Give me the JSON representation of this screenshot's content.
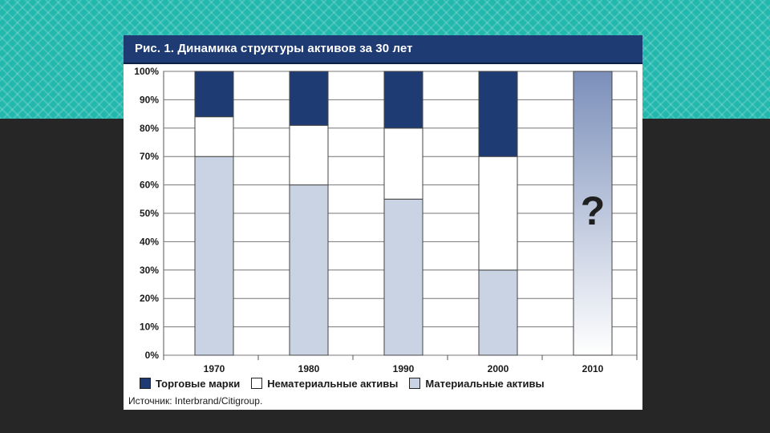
{
  "colors": {
    "brand": "#1f3b73",
    "intangible": "#ffffff",
    "tangible": "#c9d3e4",
    "background_band": "#22b8ad",
    "slide_background": "#262626"
  },
  "chart_data": {
    "type": "bar",
    "stacked": true,
    "title": "Рис. 1. Динамика структуры активов за 30 лет",
    "categories": [
      "1970",
      "1980",
      "1990",
      "2000",
      "2010"
    ],
    "ylim": [
      0,
      100
    ],
    "y_ticks": [
      "0%",
      "10%",
      "20%",
      "30%",
      "40%",
      "50%",
      "60%",
      "70%",
      "80%",
      "90%",
      "100%"
    ],
    "grid": true,
    "legend_position": "bottom",
    "series": [
      {
        "name": "Материальные активы",
        "color": "#c9d3e4",
        "values": [
          70,
          60,
          55,
          30,
          null
        ]
      },
      {
        "name": "Нематериальные активы",
        "color": "#ffffff",
        "values": [
          14,
          21,
          25,
          40,
          null
        ]
      },
      {
        "name": "Торговые марки",
        "color": "#1f3b73",
        "values": [
          16,
          19,
          20,
          30,
          null
        ]
      }
    ],
    "unknown_category": {
      "category": "2010",
      "label": "?"
    },
    "legend": [
      "Торговые марки",
      "Нематериальные активы",
      "Материальные активы"
    ],
    "source": "Источник: Interbrand/Citigroup."
  }
}
